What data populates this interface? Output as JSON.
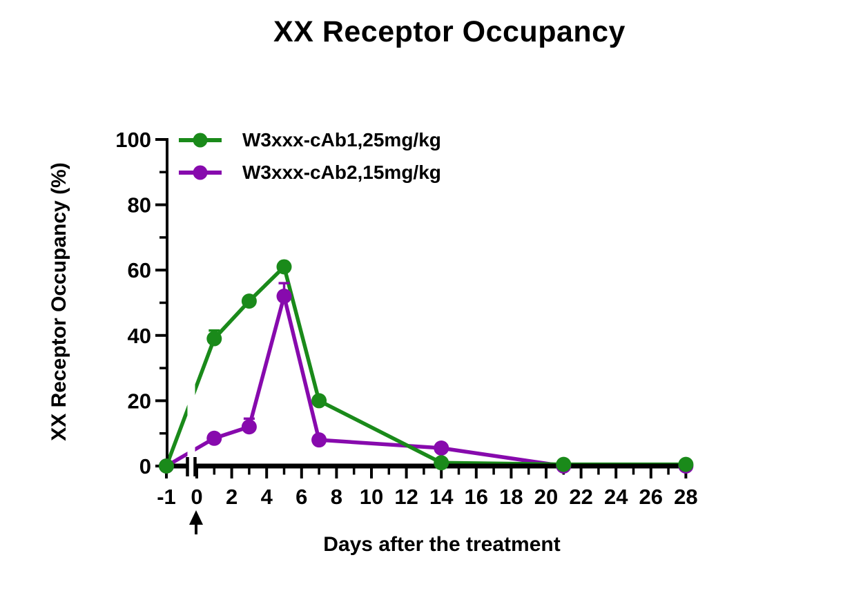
{
  "chart": {
    "background_color": "#ffffff",
    "text_color": "#000000",
    "axis_color": "#000000"
  },
  "chart_data": {
    "type": "line",
    "title": "XX Receptor Occupancy",
    "xlabel": "Days after the treatment",
    "ylabel": "XX Receptor Occupancy (%)",
    "x": [
      -1,
      1,
      3,
      5,
      7,
      14,
      21,
      28
    ],
    "series": [
      {
        "name": "W3xxx-cAb1,25mg/kg",
        "color": "#1a8a1a",
        "values": [
          0,
          39,
          50.5,
          61,
          20,
          1,
          0.5,
          0.5
        ],
        "error_plus": [
          0,
          2.5,
          0,
          0,
          0,
          0,
          0,
          0
        ]
      },
      {
        "name": "W3xxx-cAb2,15mg/kg",
        "color": "#870aad",
        "values": [
          0,
          8.5,
          12,
          52,
          8,
          5.5,
          0,
          0
        ],
        "error_plus": [
          0,
          0,
          2.5,
          4,
          0,
          0,
          0,
          0
        ]
      }
    ],
    "ylim": [
      0,
      100
    ],
    "xlim": [
      -1,
      28
    ],
    "y_major_ticks": [
      0,
      20,
      40,
      60,
      80,
      100
    ],
    "y_minor_ticks": [
      10,
      30,
      50,
      70,
      90
    ],
    "x_major_ticks": [
      -1,
      0,
      2,
      4,
      6,
      8,
      10,
      12,
      14,
      16,
      18,
      20,
      22,
      24,
      26,
      28
    ],
    "x_minor_ticks": [
      1,
      3,
      5,
      7,
      9,
      11,
      13,
      15,
      17,
      19,
      21,
      23,
      25,
      27
    ],
    "grid": "off",
    "legend_position": "top-left-inside",
    "axis_break_between": [
      -1,
      0
    ],
    "annotation": {
      "type": "arrow-up",
      "at_x": 0,
      "meaning": "treatment time point"
    }
  }
}
